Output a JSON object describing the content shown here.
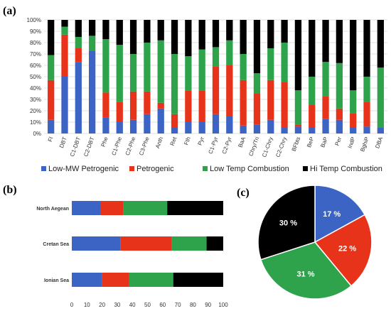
{
  "chart_data": [
    {
      "panel": "(a)",
      "type": "bar",
      "stacked": true,
      "categories": [
        "Fl",
        "DBT",
        "C1-DBT",
        "C2-DBT",
        "Phe",
        "C1-Phe",
        "C2-Phe",
        "C3-Phe",
        "Anth",
        "Ret",
        "Fth",
        "Pyr",
        "C1-Pyr",
        "C2-Pyr",
        "BaA",
        "Chry/Tri",
        "C1-Chry",
        "C2-Chry",
        "BFbts",
        "BeP",
        "BaP",
        "Per",
        "IndP",
        "BghiP",
        "DBA"
      ],
      "yticks": [
        "0%",
        "10%",
        "20%",
        "30%",
        "40%",
        "50%",
        "60%",
        "70%",
        "80%",
        "90%",
        "100%"
      ],
      "ylim": [
        0,
        100
      ],
      "series": [
        {
          "name": "Low-MW Petrogenic",
          "color": "#3b64c4",
          "values": [
            12,
            50,
            63,
            73,
            14,
            10,
            12,
            17,
            22,
            5,
            10,
            10,
            17,
            15,
            7,
            8,
            12,
            5,
            6,
            5,
            13,
            12,
            5,
            6,
            5
          ]
        },
        {
          "name": "Petrogenic",
          "color": "#e8331b",
          "values": [
            35,
            37,
            12,
            0,
            22,
            18,
            25,
            20,
            5,
            12,
            28,
            28,
            42,
            45,
            40,
            27,
            35,
            40,
            2,
            20,
            20,
            10,
            13,
            22,
            0
          ]
        },
        {
          "name": "Low Temp Combustion",
          "color": "#2ea34c",
          "values": [
            22,
            7,
            10,
            13,
            47,
            50,
            33,
            43,
            55,
            53,
            30,
            36,
            17,
            22,
            23,
            18,
            28,
            35,
            30,
            25,
            30,
            40,
            20,
            22,
            53
          ]
        },
        {
          "name": "Hi Temp Combustion",
          "color": "#000000",
          "values": [
            31,
            6,
            15,
            14,
            17,
            22,
            30,
            20,
            18,
            30,
            32,
            26,
            24,
            18,
            30,
            47,
            25,
            20,
            62,
            50,
            37,
            38,
            62,
            50,
            42
          ]
        }
      ]
    },
    {
      "panel": "(b)",
      "type": "bar",
      "orientation": "horizontal",
      "stacked": true,
      "categories": [
        "North Aegean",
        "Cretan Sea",
        "Ionian Sea"
      ],
      "xticks": [
        "0",
        "10",
        "20",
        "30",
        "40",
        "50",
        "60",
        "70",
        "80",
        "90",
        "100"
      ],
      "xlim": [
        0,
        100
      ],
      "series": [
        {
          "name": "Low-MW Petrogenic",
          "color": "#3b64c4",
          "values": [
            19,
            32,
            20
          ]
        },
        {
          "name": "Petrogenic",
          "color": "#e8331b",
          "values": [
            15,
            34,
            18
          ]
        },
        {
          "name": "Low Temp Combustion",
          "color": "#2ea34c",
          "values": [
            29,
            23,
            29
          ]
        },
        {
          "name": "Hi Temp Combustion",
          "color": "#000000",
          "values": [
            37,
            11,
            33
          ]
        }
      ]
    },
    {
      "panel": "(c)",
      "type": "pie",
      "slices": [
        {
          "name": "Low-MW Petrogenic",
          "color": "#3b64c4",
          "value": 17,
          "label": "17 %"
        },
        {
          "name": "Petrogenic",
          "color": "#e8331b",
          "value": 22,
          "label": "22 %"
        },
        {
          "name": "Low Temp Combustion",
          "color": "#2ea34c",
          "value": 31,
          "label": "31 %"
        },
        {
          "name": "Hi Temp Combustion",
          "color": "#000000",
          "value": 30,
          "label": "30 %"
        }
      ]
    }
  ],
  "legend": [
    {
      "label": "Low-MW Petrogenic",
      "color": "#3b64c4"
    },
    {
      "label": "Petrogenic",
      "color": "#e8331b"
    },
    {
      "label": "Low Temp Combustion",
      "color": "#2ea34c"
    },
    {
      "label": "Hi Temp Combustion",
      "color": "#000000"
    }
  ],
  "legend_placement": "below panel (a)"
}
